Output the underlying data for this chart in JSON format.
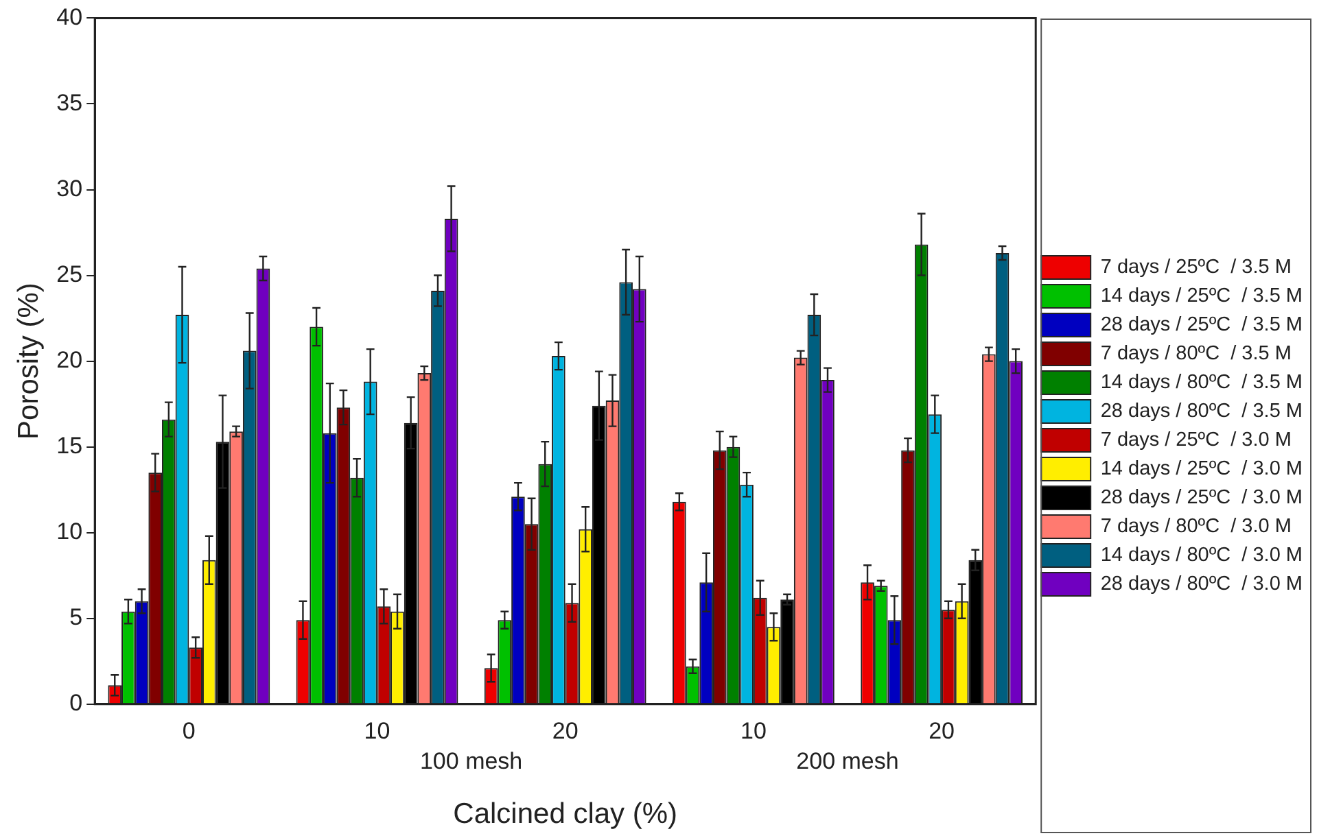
{
  "chart_data": {
    "type": "bar",
    "xlabel": "Calcined clay (%)",
    "ylabel": "Porosity (%)",
    "categories": [
      "0",
      "10",
      "20",
      "10",
      "20"
    ],
    "annotations": [
      "100 mesh",
      "200 mesh"
    ],
    "ylim": [
      0,
      40
    ],
    "yticks": [
      0,
      5,
      10,
      15,
      20,
      25,
      30,
      35,
      40
    ],
    "grid": false,
    "legend": "right",
    "series": [
      {
        "name": "7 days / 25ºC  / 3.5 M",
        "color": "#ee0000",
        "values": [
          1.1,
          4.9,
          2.1,
          11.8,
          7.1
        ],
        "errors": [
          0.6,
          1.1,
          0.8,
          0.5,
          1.0
        ]
      },
      {
        "name": "14 days / 25ºC  / 3.5 M",
        "color": "#00c000",
        "values": [
          5.4,
          22.0,
          4.9,
          2.2,
          6.9
        ],
        "errors": [
          0.7,
          1.1,
          0.5,
          0.4,
          0.3
        ]
      },
      {
        "name": "28 days / 25ºC  / 3.5 M",
        "color": "#0000c0",
        "values": [
          6.0,
          15.8,
          12.1,
          7.1,
          4.9
        ],
        "errors": [
          0.7,
          2.9,
          0.8,
          1.7,
          1.4
        ]
      },
      {
        "name": "7 days / 80ºC  / 3.5 M",
        "color": "#800000",
        "values": [
          13.5,
          17.3,
          10.5,
          14.8,
          14.8
        ],
        "errors": [
          1.1,
          1.0,
          1.5,
          1.1,
          0.7
        ]
      },
      {
        "name": "14 days / 80ºC  / 3.5 M",
        "color": "#008000",
        "values": [
          16.6,
          13.2,
          14.0,
          15.0,
          26.8
        ],
        "errors": [
          1.0,
          1.1,
          1.3,
          0.6,
          1.8
        ]
      },
      {
        "name": "28 days / 80ºC  / 3.5 M",
        "color": "#00b4e0",
        "values": [
          22.7,
          18.8,
          20.3,
          12.8,
          16.9
        ],
        "errors": [
          2.8,
          1.9,
          0.8,
          0.7,
          1.1
        ]
      },
      {
        "name": "7 days / 25ºC  / 3.0 M",
        "color": "#c00000",
        "values": [
          3.3,
          5.7,
          5.9,
          6.2,
          5.5
        ],
        "errors": [
          0.6,
          1.0,
          1.1,
          1.0,
          0.5
        ]
      },
      {
        "name": "14 days / 25ºC  / 3.0 M",
        "color": "#ffee00",
        "values": [
          8.4,
          5.4,
          10.2,
          4.5,
          6.0
        ],
        "errors": [
          1.4,
          1.0,
          1.3,
          0.8,
          1.0
        ]
      },
      {
        "name": "28 days / 25ºC  / 3.0 M",
        "color": "#000000",
        "values": [
          15.3,
          16.4,
          17.4,
          6.1,
          8.4
        ],
        "errors": [
          2.7,
          1.5,
          2.0,
          0.3,
          0.6
        ]
      },
      {
        "name": "7 days / 80ºC  / 3.0 M",
        "color": "#ff7a70",
        "values": [
          15.9,
          19.3,
          17.7,
          20.2,
          20.4
        ],
        "errors": [
          0.3,
          0.4,
          1.5,
          0.4,
          0.4
        ]
      },
      {
        "name": "14 days / 80ºC  / 3.0 M",
        "color": "#005f80",
        "values": [
          20.6,
          24.1,
          24.6,
          22.7,
          26.3
        ],
        "errors": [
          2.2,
          0.9,
          1.9,
          1.2,
          0.4
        ]
      },
      {
        "name": "28 days / 80ºC  / 3.0 M",
        "color": "#7000c0",
        "values": [
          25.4,
          28.3,
          24.2,
          18.9,
          20.0
        ],
        "errors": [
          0.7,
          1.9,
          1.9,
          0.7,
          0.7
        ]
      }
    ]
  }
}
